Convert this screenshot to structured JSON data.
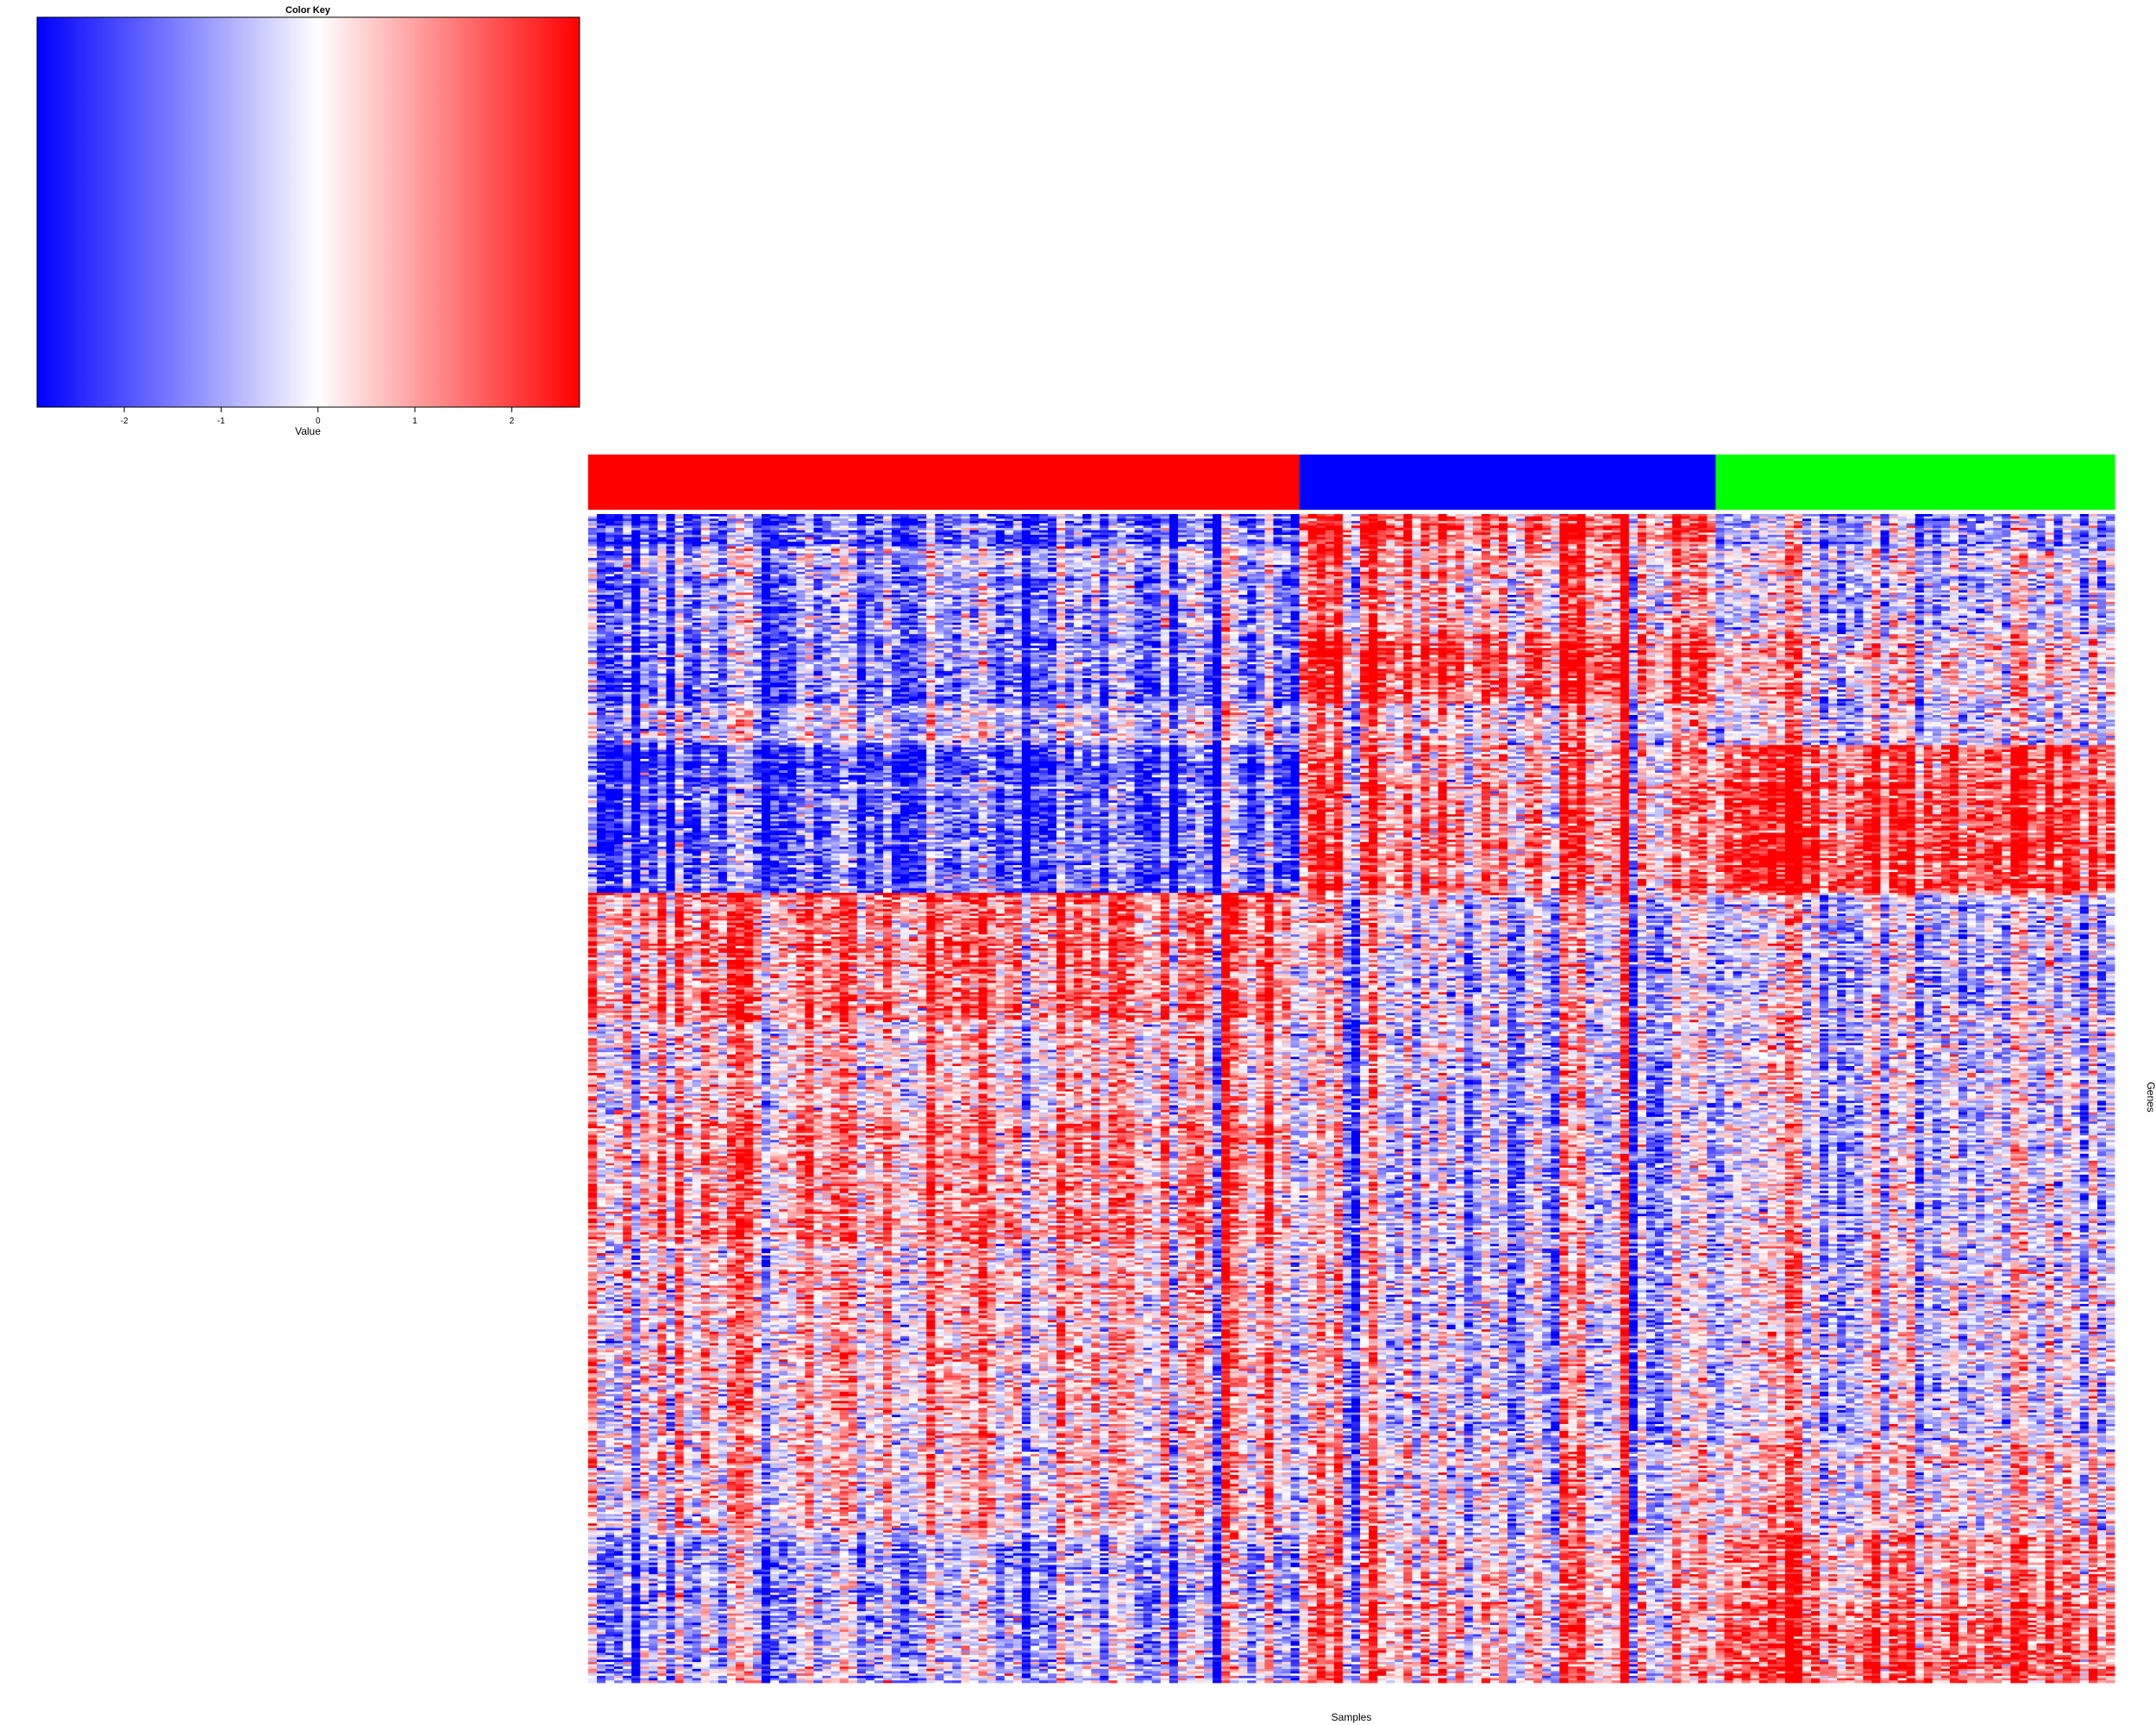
{
  "chart_data": {
    "type": "heatmap",
    "title": "",
    "xlabel": "Samples",
    "ylabel": "Genes",
    "color_key": {
      "title": "Color Key",
      "label": "Value",
      "ticks": [
        -2,
        -1,
        0,
        1,
        2
      ],
      "range": [
        -2.9,
        2.7
      ],
      "colors": {
        "low": "#0000ff",
        "mid": "#ffffff",
        "high": "#ff0000"
      }
    },
    "column_groups": [
      {
        "color": "#ff0000",
        "count": 82
      },
      {
        "color": "#0000ff",
        "count": 48
      },
      {
        "color": "#00ff00",
        "count": 46
      }
    ],
    "row_blocks": [
      {
        "rows": 14,
        "means": [
          -1.6,
          1.9,
          -0.9
        ]
      },
      {
        "rows": 38,
        "means": [
          -0.9,
          0.9,
          -0.4
        ]
      },
      {
        "rows": 30,
        "means": [
          -1.5,
          1.8,
          0.2
        ]
      },
      {
        "rows": 18,
        "means": [
          -0.6,
          0.3,
          -0.4
        ]
      },
      {
        "rows": 64,
        "means": [
          -1.8,
          1.1,
          2.0
        ]
      },
      {
        "rows": 54,
        "means": [
          1.3,
          -0.3,
          -0.6
        ]
      },
      {
        "rows": 40,
        "means": [
          0.5,
          -0.3,
          -0.3
        ]
      },
      {
        "rows": 56,
        "means": [
          1.0,
          -0.5,
          -0.5
        ]
      },
      {
        "rows": 88,
        "means": [
          0.5,
          -0.3,
          -0.2
        ]
      },
      {
        "rows": 40,
        "means": [
          0.2,
          -0.1,
          0.1
        ]
      },
      {
        "rows": 34,
        "means": [
          -0.8,
          0.6,
          1.3
        ]
      },
      {
        "rows": 30,
        "means": [
          -0.7,
          0.6,
          1.6
        ]
      }
    ]
  }
}
